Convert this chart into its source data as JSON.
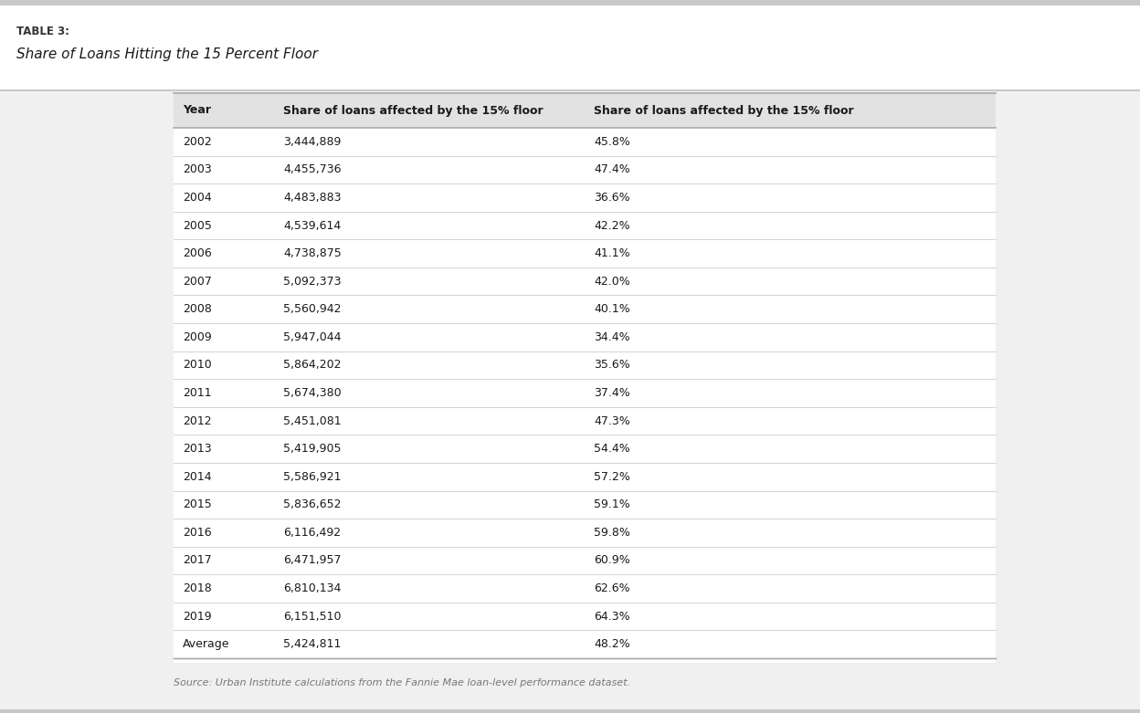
{
  "table_label": "TABLE 3:",
  "title": "Share of Loans Hitting the 15 Percent Floor",
  "col1_header": "Year",
  "col2_header": "Share of loans affected by the 15% floor",
  "col3_header": "Share of loans affected by the 15% floor",
  "rows": [
    [
      "2002",
      "3,444,889",
      "45.8%"
    ],
    [
      "2003",
      "4,455,736",
      "47.4%"
    ],
    [
      "2004",
      "4,483,883",
      "36.6%"
    ],
    [
      "2005",
      "4,539,614",
      "42.2%"
    ],
    [
      "2006",
      "4,738,875",
      "41.1%"
    ],
    [
      "2007",
      "5,092,373",
      "42.0%"
    ],
    [
      "2008",
      "5,560,942",
      "40.1%"
    ],
    [
      "2009",
      "5,947,044",
      "34.4%"
    ],
    [
      "2010",
      "5,864,202",
      "35.6%"
    ],
    [
      "2011",
      "5,674,380",
      "37.4%"
    ],
    [
      "2012",
      "5,451,081",
      "47.3%"
    ],
    [
      "2013",
      "5,419,905",
      "54.4%"
    ],
    [
      "2014",
      "5,586,921",
      "57.2%"
    ],
    [
      "2015",
      "5,836,652",
      "59.1%"
    ],
    [
      "2016",
      "6,116,492",
      "59.8%"
    ],
    [
      "2017",
      "6,471,957",
      "60.9%"
    ],
    [
      "2018",
      "6,810,134",
      "62.6%"
    ],
    [
      "2019",
      "6,151,510",
      "64.3%"
    ],
    [
      "Average",
      "5,424,811",
      "48.2%"
    ]
  ],
  "footer": "Source: Urban Institute calculations from the Fannie Mae loan-level performance dataset.",
  "bg_color": "#f0f0f0",
  "table_bg": "#ffffff",
  "header_bg": "#e2e2e2",
  "separator_color_heavy": "#aaaaaa",
  "separator_color_light": "#cccccc",
  "text_color": "#1a1a1a",
  "label_color": "#333333",
  "footer_color": "#777777",
  "top_strip_color": "#c8c8c8",
  "label_fontsize": 8.5,
  "title_fontsize": 11,
  "header_fontsize": 9,
  "data_fontsize": 9,
  "footer_fontsize": 8
}
